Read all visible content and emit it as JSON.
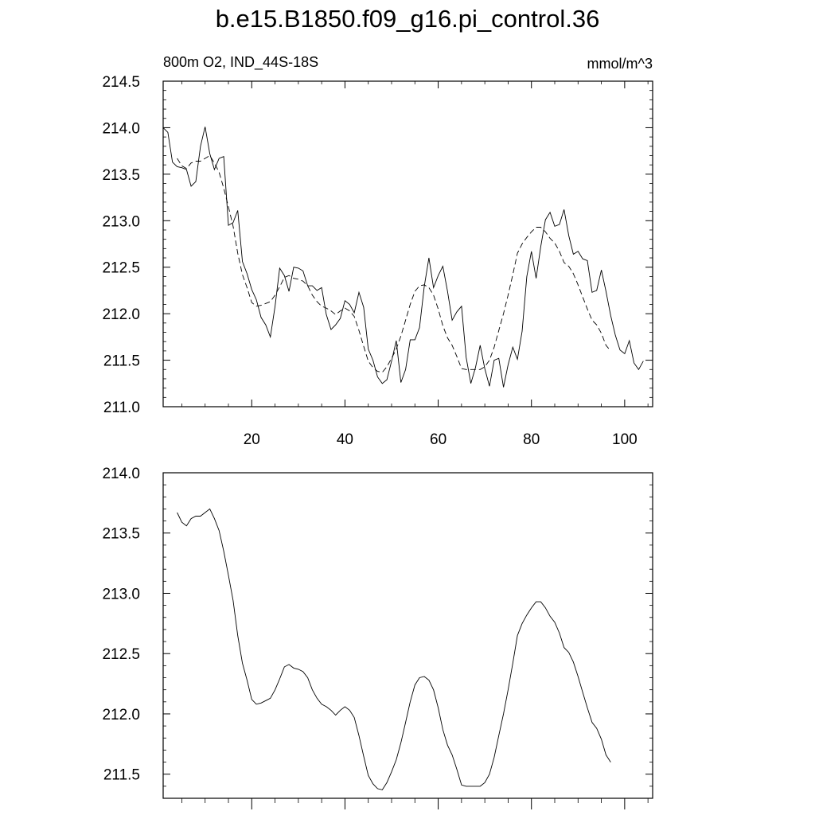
{
  "title": "b.e15.B1850.f09_g16.pi_control.36",
  "chart_data": [
    {
      "type": "line",
      "subtitle_left": "800m O2, IND_44S-18S",
      "subtitle_right": "mmol/m^3",
      "xlim": [
        1,
        106
      ],
      "ylim": [
        211.0,
        214.5
      ],
      "y_ticks": [
        "211.0",
        "211.5",
        "212.0",
        "212.5",
        "213.0",
        "213.5",
        "214.0",
        "214.5"
      ],
      "x_ticks": [
        "20",
        "40",
        "60",
        "80",
        "100"
      ],
      "series": [
        {
          "style": "solid",
          "color": "#000000",
          "x_start": 1,
          "values": [
            214.0,
            213.95,
            213.63,
            213.58,
            213.57,
            213.55,
            213.37,
            213.42,
            213.8,
            214.01,
            213.72,
            213.55,
            213.67,
            213.69,
            212.95,
            212.98,
            213.11,
            212.56,
            212.43,
            212.26,
            212.15,
            211.96,
            211.88,
            211.75,
            212.08,
            212.49,
            212.41,
            212.24,
            212.5,
            212.49,
            212.46,
            212.3,
            212.3,
            212.25,
            212.28,
            211.99,
            211.83,
            211.88,
            211.95,
            212.14,
            212.1,
            212.01,
            212.23,
            212.07,
            211.62,
            211.5,
            211.32,
            211.25,
            211.29,
            211.49,
            211.71,
            211.26,
            211.4,
            211.72,
            211.72,
            211.85,
            212.29,
            212.6,
            212.28,
            212.41,
            212.51,
            212.24,
            211.93,
            212.02,
            212.08,
            211.53,
            211.25,
            211.42,
            211.66,
            211.41,
            211.22,
            211.5,
            211.52,
            211.21,
            211.45,
            211.64,
            211.51,
            211.81,
            212.4,
            212.67,
            212.38,
            212.72,
            213.01,
            213.09,
            212.94,
            212.96,
            213.12,
            212.84,
            212.64,
            212.67,
            212.59,
            212.57,
            212.23,
            212.25,
            212.47,
            212.24,
            211.98,
            211.77,
            211.61,
            211.57,
            211.71,
            211.47,
            211.4,
            211.49
          ]
        },
        {
          "style": "dashed",
          "color": "#000000",
          "x_start": 4,
          "values": [
            213.67,
            213.59,
            213.56,
            213.62,
            213.64,
            213.64,
            213.67,
            213.7,
            213.62,
            213.52,
            213.35,
            213.15,
            212.94,
            212.65,
            212.42,
            212.28,
            212.12,
            212.08,
            212.09,
            212.11,
            212.13,
            212.2,
            212.29,
            212.39,
            212.41,
            212.38,
            212.37,
            212.35,
            212.3,
            212.2,
            212.13,
            212.08,
            212.06,
            212.03,
            211.99,
            212.03,
            212.06,
            212.03,
            211.97,
            211.82,
            211.65,
            211.49,
            211.42,
            211.38,
            211.37,
            211.43,
            211.52,
            211.62,
            211.76,
            211.93,
            212.1,
            212.24,
            212.3,
            212.31,
            212.28,
            212.2,
            212.05,
            211.87,
            211.74,
            211.66,
            211.54,
            211.41,
            211.4,
            211.4,
            211.4,
            211.4,
            211.43,
            211.5,
            211.64,
            211.82,
            212.0,
            212.2,
            212.42,
            212.65,
            212.75,
            212.82,
            212.88,
            212.93,
            212.93,
            212.88,
            212.81,
            212.76,
            212.67,
            212.55,
            212.51,
            212.43,
            212.31,
            212.18,
            212.05,
            211.93,
            211.88,
            211.79,
            211.66,
            211.6
          ]
        }
      ]
    },
    {
      "type": "line",
      "xlim": [
        1,
        106
      ],
      "ylim": [
        211.3,
        214.0
      ],
      "y_ticks": [
        "211.5",
        "212.0",
        "212.5",
        "213.0",
        "213.5",
        "214.0"
      ],
      "series": [
        {
          "style": "solid",
          "color": "#000000",
          "x_start": 4,
          "values": [
            213.67,
            213.59,
            213.56,
            213.62,
            213.64,
            213.64,
            213.67,
            213.7,
            213.62,
            213.52,
            213.35,
            213.15,
            212.94,
            212.65,
            212.42,
            212.28,
            212.12,
            212.08,
            212.09,
            212.11,
            212.13,
            212.2,
            212.29,
            212.39,
            212.41,
            212.38,
            212.37,
            212.35,
            212.3,
            212.2,
            212.13,
            212.08,
            212.06,
            212.03,
            211.99,
            212.03,
            212.06,
            212.03,
            211.97,
            211.82,
            211.65,
            211.49,
            211.42,
            211.38,
            211.37,
            211.43,
            211.52,
            211.62,
            211.76,
            211.93,
            212.1,
            212.24,
            212.3,
            212.31,
            212.28,
            212.2,
            212.05,
            211.87,
            211.74,
            211.66,
            211.54,
            211.41,
            211.4,
            211.4,
            211.4,
            211.4,
            211.43,
            211.5,
            211.64,
            211.82,
            212.0,
            212.2,
            212.42,
            212.65,
            212.75,
            212.82,
            212.88,
            212.93,
            212.93,
            212.88,
            212.81,
            212.76,
            212.67,
            212.55,
            212.51,
            212.43,
            212.31,
            212.18,
            212.05,
            211.93,
            211.88,
            211.79,
            211.66,
            211.6
          ]
        }
      ]
    }
  ]
}
